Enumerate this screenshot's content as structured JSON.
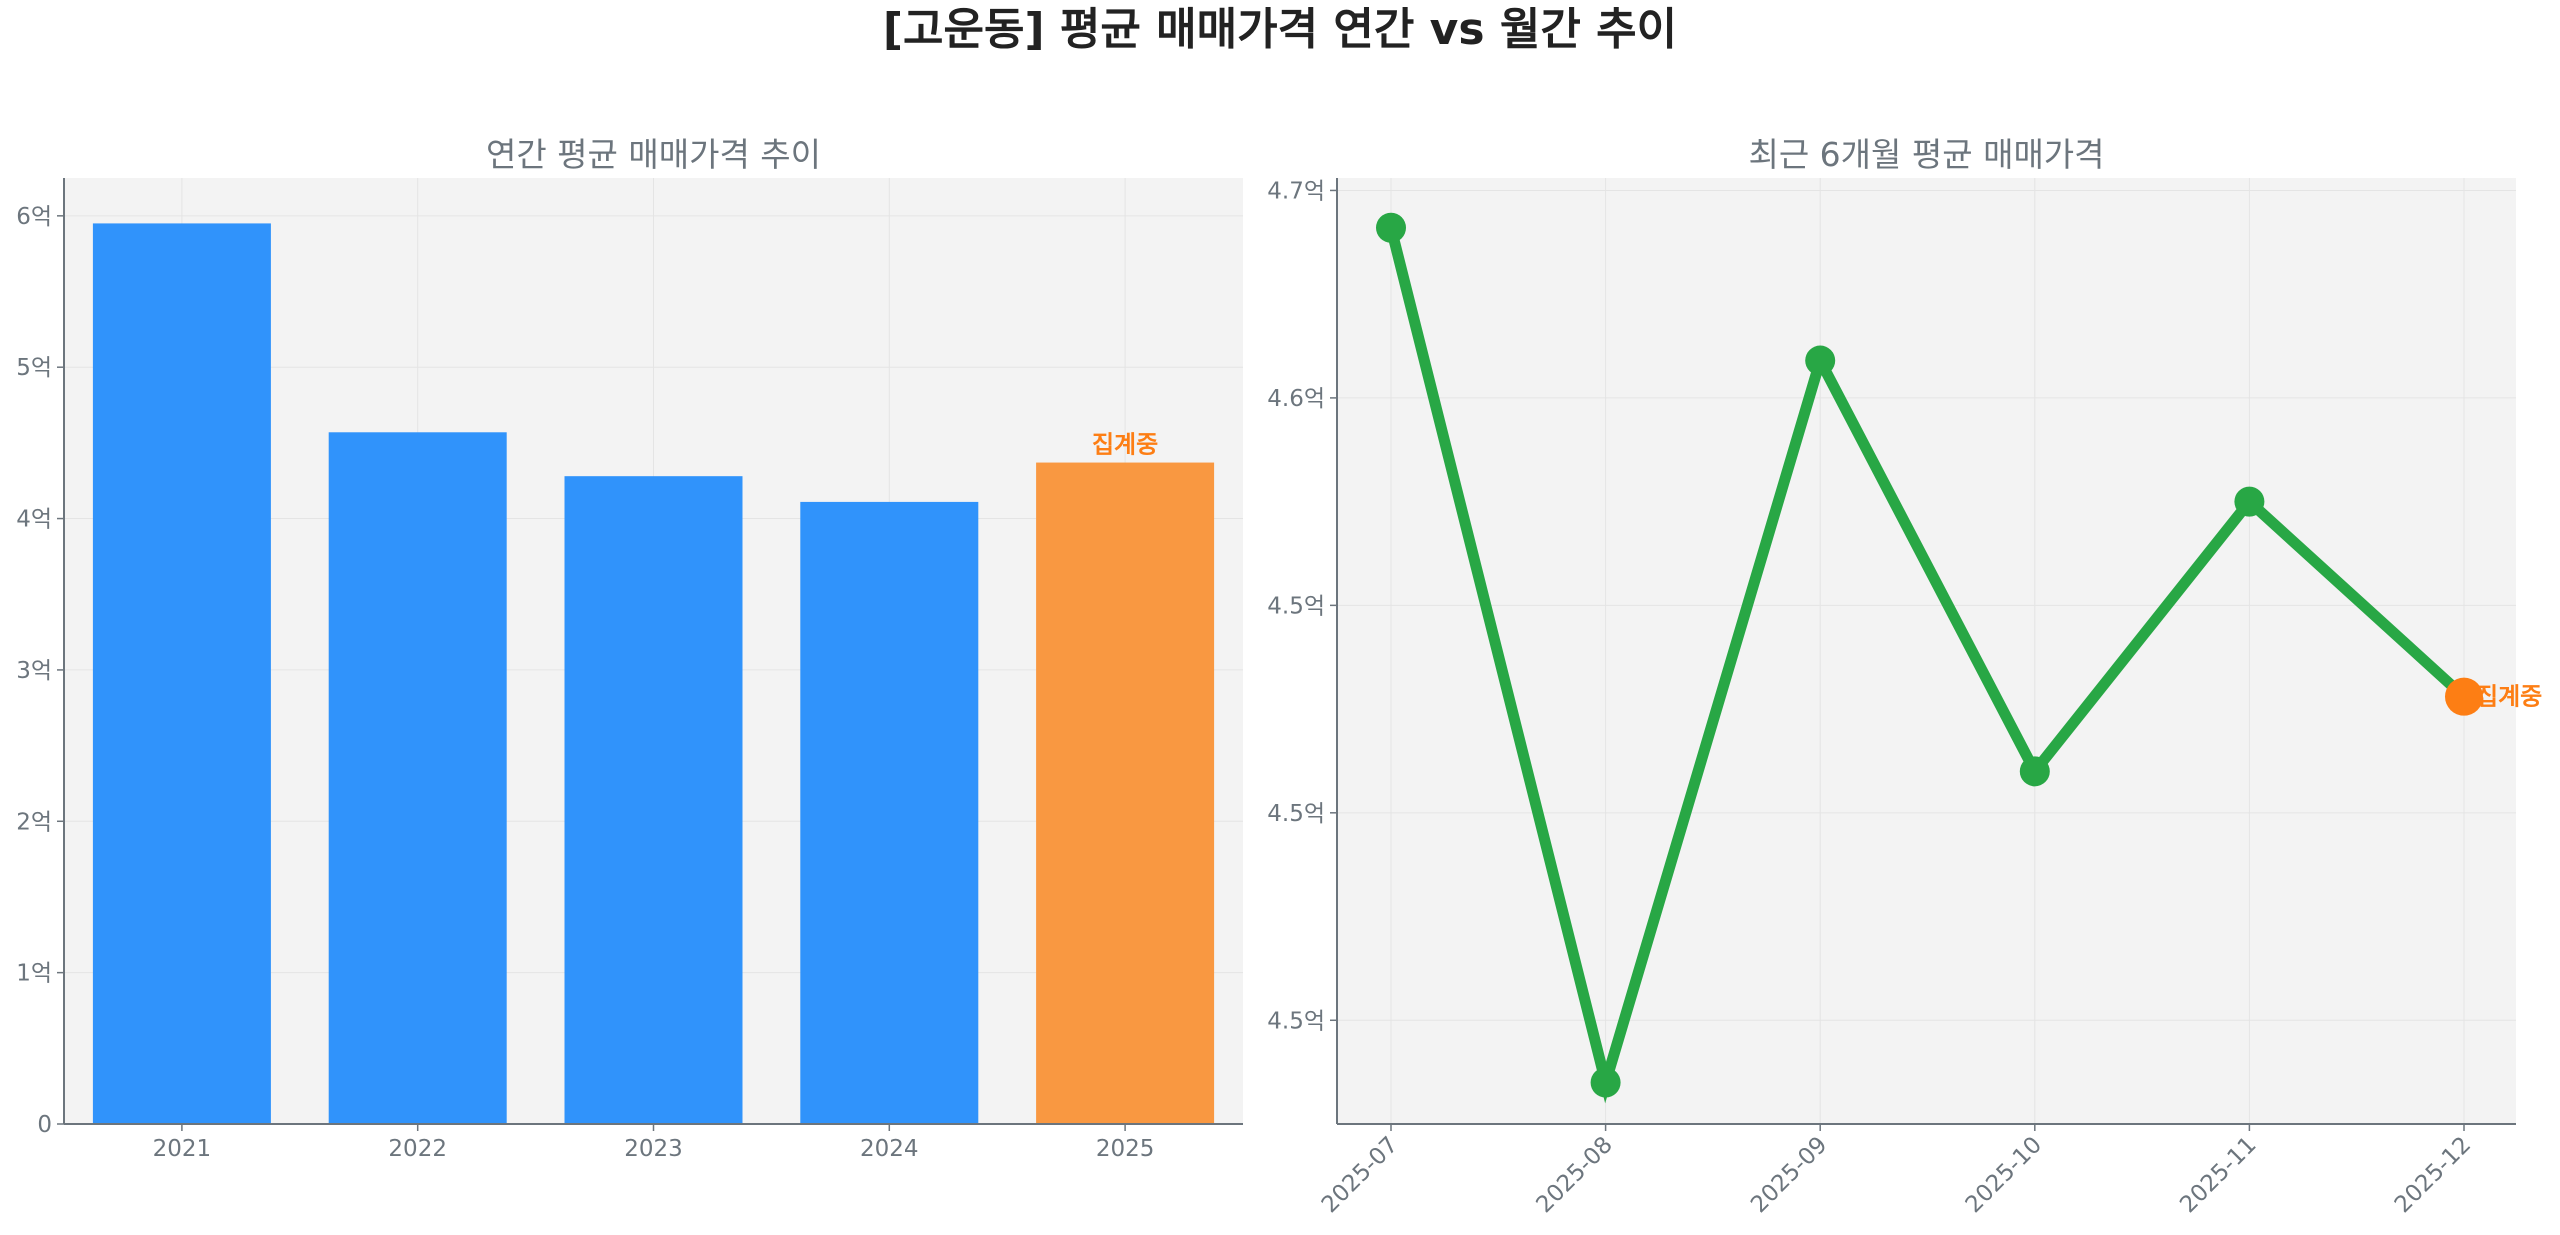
{
  "title": "[고운동] 평균 매매가격 연간 vs 월간 추이",
  "colors": {
    "bar": "#3093fb",
    "bar_partial": "#f99841",
    "line": "#28a745",
    "marker_partial": "#fd7e14",
    "annotation": "#fd7e14",
    "plot_bg": "#f3f3f3"
  },
  "chart_data": [
    {
      "type": "bar",
      "title": "연간 평균 매매가격 추이",
      "categories": [
        "2021",
        "2022",
        "2023",
        "2024",
        "2025"
      ],
      "values": [
        5.95,
        4.57,
        4.28,
        4.11,
        4.37
      ],
      "unit": "억",
      "ylim": [
        0,
        6.25
      ],
      "yticks": [
        0,
        1,
        2,
        3,
        4,
        5,
        6
      ],
      "ytick_labels": [
        "0",
        "1억",
        "2억",
        "3억",
        "4억",
        "5억",
        "6억"
      ],
      "grid": true,
      "highlight": {
        "category": "2025",
        "label": "집계중"
      }
    },
    {
      "type": "line",
      "title": "최근 6개월 평균 매매가격",
      "x": [
        "2025-07",
        "2025-08",
        "2025-09",
        "2025-10",
        "2025-11",
        "2025-12"
      ],
      "values": [
        4.641,
        4.435,
        4.609,
        4.51,
        4.575,
        4.528
      ],
      "unit": "억",
      "ylim": [
        4.425,
        4.653
      ],
      "yticks": [
        4.45,
        4.5,
        4.55,
        4.6,
        4.65
      ],
      "ytick_labels": [
        "4.5억",
        "4.5억",
        "4.5억",
        "4.6억",
        "4.7억"
      ],
      "grid": true,
      "highlight": {
        "x": "2025-12",
        "label": "집계중"
      }
    }
  ]
}
